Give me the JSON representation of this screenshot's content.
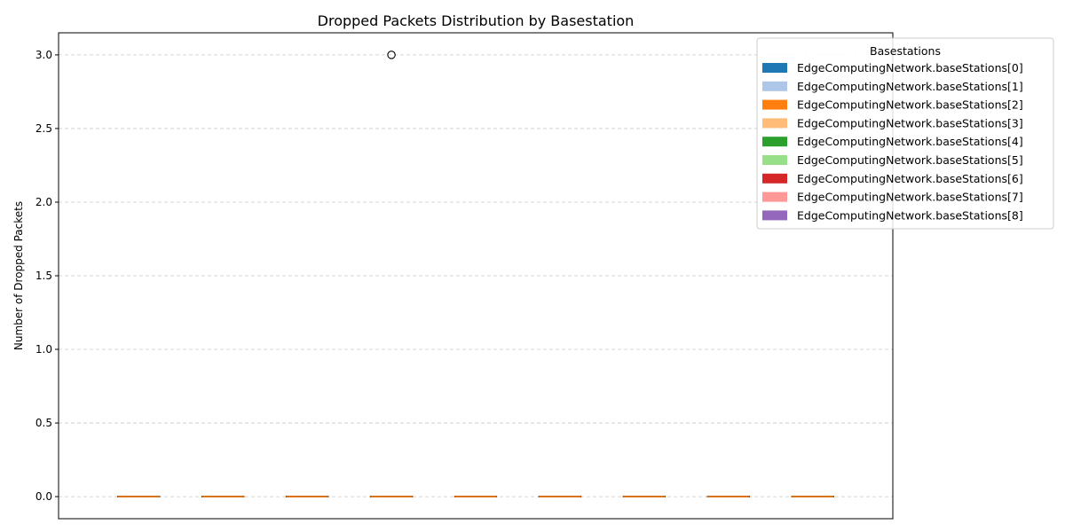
{
  "chart_data": {
    "type": "box",
    "title": "Dropped Packets Distribution by Basestation",
    "xlabel": "",
    "ylabel": "Number of Dropped Packets",
    "ylim": [
      -0.15,
      3.15
    ],
    "yticks": [
      0.0,
      0.5,
      1.0,
      1.5,
      2.0,
      2.5,
      3.0
    ],
    "ytick_labels": [
      "0.0",
      "0.5",
      "1.0",
      "1.5",
      "2.0",
      "2.5",
      "3.0"
    ],
    "grid": "y-dashed",
    "legend": {
      "title": "Basestations",
      "placement": "upper-right-outside"
    },
    "series": [
      {
        "name": "EdgeComputingNetwork.baseStations[0]",
        "color": "#1f77b4",
        "q1": 0,
        "median": 0,
        "q3": 0,
        "whisker_low": 0,
        "whisker_high": 0,
        "outliers": []
      },
      {
        "name": "EdgeComputingNetwork.baseStations[1]",
        "color": "#aec7e8",
        "q1": 0,
        "median": 0,
        "q3": 0,
        "whisker_low": 0,
        "whisker_high": 0,
        "outliers": []
      },
      {
        "name": "EdgeComputingNetwork.baseStations[2]",
        "color": "#ff7f0e",
        "q1": 0,
        "median": 0,
        "q3": 0,
        "whisker_low": 0,
        "whisker_high": 0,
        "outliers": []
      },
      {
        "name": "EdgeComputingNetwork.baseStations[3]",
        "color": "#ffbb78",
        "q1": 0,
        "median": 0,
        "q3": 0,
        "whisker_low": 0,
        "whisker_high": 0,
        "outliers": [
          3
        ]
      },
      {
        "name": "EdgeComputingNetwork.baseStations[4]",
        "color": "#2ca02c",
        "q1": 0,
        "median": 0,
        "q3": 0,
        "whisker_low": 0,
        "whisker_high": 0,
        "outliers": []
      },
      {
        "name": "EdgeComputingNetwork.baseStations[5]",
        "color": "#98df8a",
        "q1": 0,
        "median": 0,
        "q3": 0,
        "whisker_low": 0,
        "whisker_high": 0,
        "outliers": []
      },
      {
        "name": "EdgeComputingNetwork.baseStations[6]",
        "color": "#d62728",
        "q1": 0,
        "median": 0,
        "q3": 0,
        "whisker_low": 0,
        "whisker_high": 0,
        "outliers": []
      },
      {
        "name": "EdgeComputingNetwork.baseStations[7]",
        "color": "#ff9896",
        "q1": 0,
        "median": 0,
        "q3": 0,
        "whisker_low": 0,
        "whisker_high": 0,
        "outliers": []
      },
      {
        "name": "EdgeComputingNetwork.baseStations[8]",
        "color": "#9467bd",
        "q1": 0,
        "median": 0,
        "q3": 0,
        "whisker_low": 0,
        "whisker_high": 0,
        "outliers": []
      }
    ],
    "median_color": "#ff7f0e"
  }
}
